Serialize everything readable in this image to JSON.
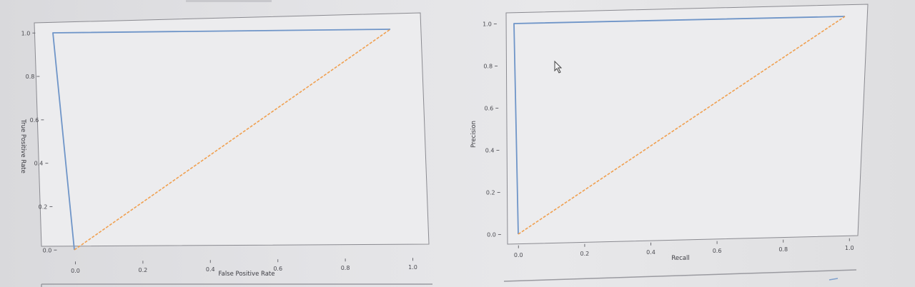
{
  "colors": {
    "curve": "#6f95c8",
    "baseline": "#f0a050",
    "frame": "#8a8a90",
    "text": "#4a4a50"
  },
  "icons": {
    "cursor": "mouse-pointer-icon"
  },
  "chart_data": [
    {
      "type": "line",
      "title": "",
      "xlabel": "False Positive Rate",
      "ylabel": "True Positive Rate",
      "xlim": [
        -0.05,
        1.05
      ],
      "ylim": [
        -0.05,
        1.05
      ],
      "xticks": [
        "0.0",
        "0.2",
        "0.4",
        "0.6",
        "0.8",
        "1.0"
      ],
      "yticks": [
        "0.0",
        "0.2",
        "0.4",
        "0.6",
        "0.8",
        "1.0"
      ],
      "grid": false,
      "series": [
        {
          "x": [
            0.0,
            0.0,
            1.0
          ],
          "y": [
            0.0,
            1.0,
            1.0
          ],
          "style": "solid",
          "color": "#6f95c8"
        },
        {
          "x": [
            0.0,
            1.0
          ],
          "y": [
            0.0,
            1.0
          ],
          "style": "dashed",
          "color": "#f0a050"
        }
      ]
    },
    {
      "type": "line",
      "title": "",
      "xlabel": "Recall",
      "ylabel": "Precision",
      "xlim": [
        -0.05,
        1.05
      ],
      "ylim": [
        -0.05,
        1.05
      ],
      "xticks": [
        "0.0",
        "0.2",
        "0.4",
        "0.6",
        "0.8",
        "1.0"
      ],
      "yticks": [
        "0.0",
        "0.2",
        "0.4",
        "0.6",
        "0.8",
        "1.0"
      ],
      "grid": false,
      "series": [
        {
          "x": [
            0.0,
            0.0,
            1.0
          ],
          "y": [
            0.0,
            1.0,
            1.0
          ],
          "style": "solid",
          "color": "#6f95c8"
        },
        {
          "x": [
            0.0,
            1.0
          ],
          "y": [
            0.0,
            1.0
          ],
          "style": "dashed",
          "color": "#f0a050"
        }
      ]
    }
  ]
}
